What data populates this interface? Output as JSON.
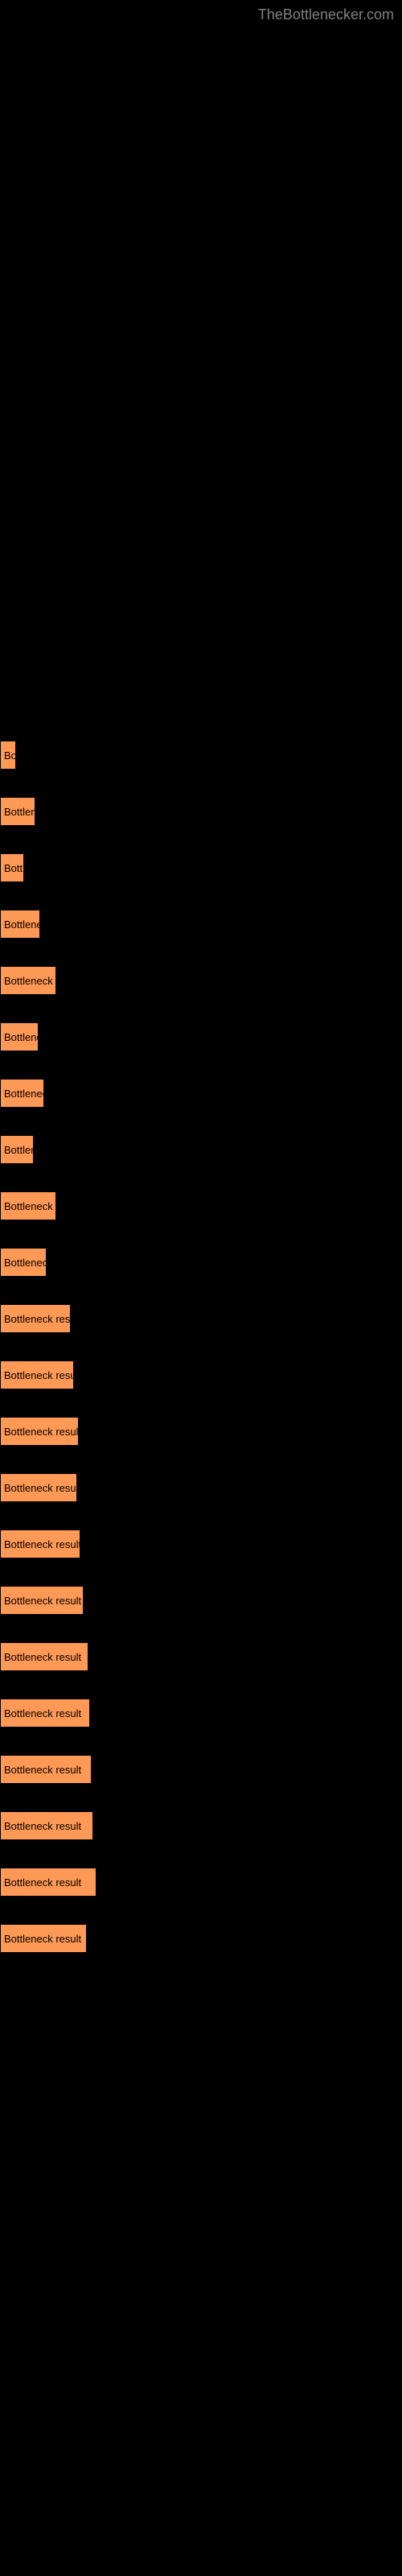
{
  "watermark": "TheBottlenecker.com",
  "chart": {
    "type": "bar",
    "bar_color": "#ff9955",
    "text_color": "#000000",
    "background_color": "#000000",
    "label_text": "Bottleneck result",
    "bars": [
      {
        "width": 20,
        "visible_text": "Bo"
      },
      {
        "width": 44,
        "visible_text": "Bottlene"
      },
      {
        "width": 30,
        "visible_text": "Botti"
      },
      {
        "width": 50,
        "visible_text": "Bottleneck"
      },
      {
        "width": 70,
        "visible_text": "Bottleneck re"
      },
      {
        "width": 48,
        "visible_text": "Bottlenec"
      },
      {
        "width": 55,
        "visible_text": "Bottleneck"
      },
      {
        "width": 42,
        "visible_text": "Bottlene"
      },
      {
        "width": 70,
        "visible_text": "Bottleneck re"
      },
      {
        "width": 58,
        "visible_text": "Bottleneck"
      },
      {
        "width": 88,
        "visible_text": "Bottleneck result"
      },
      {
        "width": 92,
        "visible_text": "Bottleneck result"
      },
      {
        "width": 98,
        "visible_text": "Bottleneck result"
      },
      {
        "width": 96,
        "visible_text": "Bottleneck result"
      },
      {
        "width": 100,
        "visible_text": "Bottleneck result"
      },
      {
        "width": 104,
        "visible_text": "Bottleneck result"
      },
      {
        "width": 110,
        "visible_text": "Bottleneck result"
      },
      {
        "width": 112,
        "visible_text": "Bottleneck result"
      },
      {
        "width": 114,
        "visible_text": "Bottleneck result"
      },
      {
        "width": 116,
        "visible_text": "Bottleneck result"
      },
      {
        "width": 120,
        "visible_text": "Bottleneck result"
      },
      {
        "width": 108,
        "visible_text": "Bottleneck result"
      }
    ]
  }
}
